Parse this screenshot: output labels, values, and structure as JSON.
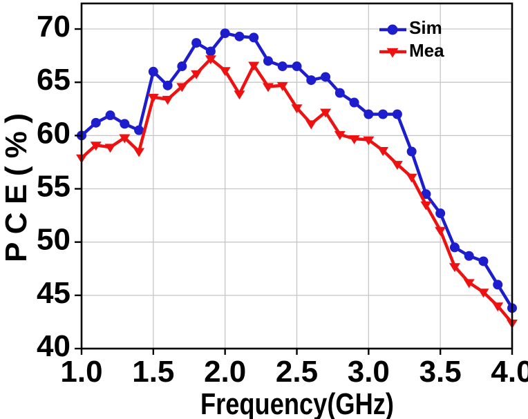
{
  "chart_data": {
    "type": "line",
    "title": "",
    "xlabel": "Frequency(GHz)",
    "ylabel": "PCE(%)",
    "xlim": [
      1.0,
      4.0
    ],
    "ylim": [
      40,
      72.4
    ],
    "grid": "on",
    "legend_position": "top-right",
    "x_tick_labels": [
      "1.0",
      "1.5",
      "2.0",
      "2.5",
      "3.0",
      "3.5",
      "4.0"
    ],
    "y_tick_labels": [
      "40",
      "45",
      "50",
      "55",
      "60",
      "65",
      "70"
    ],
    "x": [
      1.0,
      1.1,
      1.2,
      1.3,
      1.4,
      1.5,
      1.6,
      1.7,
      1.8,
      1.9,
      2.0,
      2.1,
      2.2,
      2.3,
      2.4,
      2.5,
      2.6,
      2.7,
      2.8,
      2.9,
      3.0,
      3.1,
      3.2,
      3.3,
      3.4,
      3.5,
      3.6,
      3.7,
      3.8,
      3.9,
      4.0
    ],
    "series": [
      {
        "name": "Sim",
        "marker": "circle",
        "color": "#1d1dce",
        "values": [
          60.0,
          61.2,
          61.9,
          61.1,
          60.5,
          66.0,
          64.7,
          66.5,
          68.7,
          67.9,
          69.6,
          69.3,
          69.2,
          67.0,
          66.5,
          66.5,
          65.2,
          65.5,
          64.0,
          63.1,
          62.0,
          62.0,
          62.0,
          58.5,
          54.5,
          52.7,
          49.5,
          48.7,
          48.2,
          46.0,
          43.8
        ]
      },
      {
        "name": "Mea",
        "marker": "triangle-down",
        "color": "#ee1111",
        "values": [
          57.9,
          59.1,
          58.9,
          59.8,
          58.5,
          63.6,
          63.4,
          64.6,
          65.8,
          67.2,
          66.1,
          63.9,
          66.6,
          64.6,
          64.7,
          62.6,
          61.1,
          62.2,
          60.1,
          59.7,
          59.6,
          58.6,
          57.3,
          56.1,
          53.5,
          51.1,
          47.7,
          46.2,
          45.3,
          44.0,
          42.4
        ]
      }
    ]
  },
  "colors": {
    "grid": "#c6c6c6",
    "axis": "#000000",
    "background": "#ffffff"
  }
}
